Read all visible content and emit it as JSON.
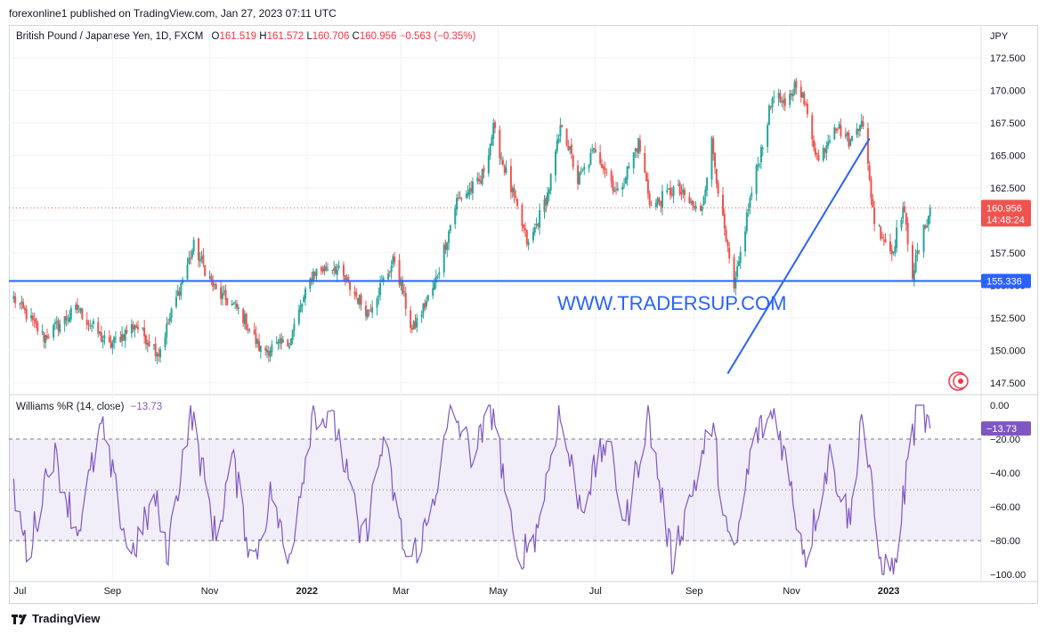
{
  "header": {
    "published": "forexonline1 published on TradingView.com, Jan 27, 2023 07:11 UTC"
  },
  "legend": {
    "symbol": "British Pound / Japanese Yen, 1D, FXCM",
    "o_label": "O",
    "o_value": "161.519",
    "h_label": "H",
    "h_value": "161.572",
    "l_label": "L",
    "l_value": "160.706",
    "c_label": "C",
    "c_value": "160.956",
    "change": "−0.563 (−0.35%)"
  },
  "indicator": {
    "label": "Williams %R (14, close)",
    "value": "−13.73"
  },
  "watermark": "WWW.TRADERSUP.COM",
  "footer": {
    "brand": "TradingView"
  },
  "colors": {
    "up": "#26a69a",
    "down": "#ef5350",
    "blue_line": "#2962ff",
    "wr_line": "#7e57c2",
    "wr_band": "rgba(126,87,194,0.10)",
    "watermark": "#2962ff"
  },
  "chart_data": [
    {
      "type": "candlestick",
      "currency": "JPY",
      "ylim": [
        146.8,
        173.8
      ],
      "y_ticks": [
        "172.500",
        "170.000",
        "167.500",
        "165.000",
        "162.500",
        "160.000",
        "157.500",
        "155.000",
        "152.500",
        "150.000",
        "147.500"
      ],
      "x_ticks": [
        "Jul",
        "Sep",
        "Nov",
        "2022",
        "Mar",
        "May",
        "Jul",
        "Sep",
        "Nov",
        "2023"
      ],
      "last_price": "160.956",
      "countdown": "14:48:24",
      "horizontal_line": {
        "value": 155.336,
        "label": "155.336"
      },
      "trendline": {
        "from": {
          "x": "2022-09-22",
          "y": 148.2
        },
        "to": {
          "x": "2022-12-20",
          "y": 166.3
        }
      },
      "close_path": [
        [
          "2021-07-01",
          154.0
        ],
        [
          "2021-07-20",
          151.0
        ],
        [
          "2021-08-10",
          153.2
        ],
        [
          "2021-08-30",
          150.3
        ],
        [
          "2021-09-15",
          152.0
        ],
        [
          "2021-09-30",
          149.8
        ],
        [
          "2021-10-15",
          155.5
        ],
        [
          "2021-10-22",
          158.0
        ],
        [
          "2021-11-05",
          154.5
        ],
        [
          "2021-11-20",
          153.0
        ],
        [
          "2021-12-03",
          150.0
        ],
        [
          "2021-12-20",
          150.5
        ],
        [
          "2022-01-05",
          156.0
        ],
        [
          "2022-01-18",
          156.5
        ],
        [
          "2022-02-08",
          153.0
        ],
        [
          "2022-02-25",
          157.0
        ],
        [
          "2022-03-08",
          151.5
        ],
        [
          "2022-03-22",
          155.0
        ],
        [
          "2022-04-05",
          161.5
        ],
        [
          "2022-04-20",
          163.0
        ],
        [
          "2022-04-28",
          167.0
        ],
        [
          "2022-05-05",
          164.0
        ],
        [
          "2022-05-20",
          158.0
        ],
        [
          "2022-06-01",
          162.0
        ],
        [
          "2022-06-10",
          167.5
        ],
        [
          "2022-06-20",
          163.0
        ],
        [
          "2022-07-01",
          165.5
        ],
        [
          "2022-07-15",
          162.0
        ],
        [
          "2022-07-28",
          166.0
        ],
        [
          "2022-08-05",
          161.0
        ],
        [
          "2022-08-20",
          162.5
        ],
        [
          "2022-09-05",
          160.5
        ],
        [
          "2022-09-12",
          166.0
        ],
        [
          "2022-09-20",
          159.0
        ],
        [
          "2022-09-26",
          154.5
        ],
        [
          "2022-10-05",
          161.0
        ],
        [
          "2022-10-14",
          166.0
        ],
        [
          "2022-10-21",
          170.0
        ],
        [
          "2022-10-28",
          168.5
        ],
        [
          "2022-11-05",
          171.0
        ],
        [
          "2022-11-18",
          164.5
        ],
        [
          "2022-11-28",
          167.5
        ],
        [
          "2022-12-08",
          166.0
        ],
        [
          "2022-12-15",
          168.0
        ],
        [
          "2022-12-23",
          160.0
        ],
        [
          "2023-01-03",
          157.5
        ],
        [
          "2023-01-10",
          161.0
        ],
        [
          "2023-01-16",
          156.0
        ],
        [
          "2023-01-27",
          160.956
        ]
      ]
    },
    {
      "type": "line",
      "name": "Williams %R (14, close)",
      "ylim": [
        -100,
        0
      ],
      "y_ticks": [
        "0.00",
        "−20.00",
        "−40.00",
        "−60.00",
        "−80.00",
        "−100.00"
      ],
      "levels": [
        -20,
        -50,
        -80
      ],
      "last_value": "−13.73",
      "anchors": [
        [
          "2021-07-01",
          -50
        ],
        [
          "2021-07-10",
          -90
        ],
        [
          "2021-07-25",
          -25
        ],
        [
          "2021-08-10",
          -75
        ],
        [
          "2021-08-25",
          -12
        ],
        [
          "2021-09-12",
          -90
        ],
        [
          "2021-09-28",
          -55
        ],
        [
          "2021-10-05",
          -90
        ],
        [
          "2021-10-20",
          -2
        ],
        [
          "2021-11-05",
          -80
        ],
        [
          "2021-11-15",
          -30
        ],
        [
          "2021-11-28",
          -95
        ],
        [
          "2021-12-10",
          -50
        ],
        [
          "2021-12-20",
          -95
        ],
        [
          "2022-01-05",
          -2
        ],
        [
          "2022-01-20",
          -15
        ],
        [
          "2022-02-05",
          -85
        ],
        [
          "2022-02-18",
          -20
        ],
        [
          "2022-03-05",
          -95
        ],
        [
          "2022-03-18",
          -70
        ],
        [
          "2022-04-02",
          -3
        ],
        [
          "2022-04-15",
          -30
        ],
        [
          "2022-04-28",
          -2
        ],
        [
          "2022-05-12",
          -92
        ],
        [
          "2022-05-25",
          -75
        ],
        [
          "2022-06-08",
          -5
        ],
        [
          "2022-06-22",
          -60
        ],
        [
          "2022-07-08",
          -20
        ],
        [
          "2022-07-20",
          -70
        ],
        [
          "2022-08-03",
          -5
        ],
        [
          "2022-08-18",
          -92
        ],
        [
          "2022-09-03",
          -40
        ],
        [
          "2022-09-12",
          -10
        ],
        [
          "2022-09-25",
          -97
        ],
        [
          "2022-10-08",
          -20
        ],
        [
          "2022-10-22",
          -3
        ],
        [
          "2022-11-03",
          -60
        ],
        [
          "2022-11-10",
          -90
        ],
        [
          "2022-11-25",
          -30
        ],
        [
          "2022-12-08",
          -70
        ],
        [
          "2022-12-15",
          -3
        ],
        [
          "2022-12-27",
          -95
        ],
        [
          "2023-01-05",
          -98
        ],
        [
          "2023-01-14",
          -25
        ],
        [
          "2023-01-20",
          -2
        ],
        [
          "2023-01-27",
          -13.73
        ]
      ]
    }
  ]
}
